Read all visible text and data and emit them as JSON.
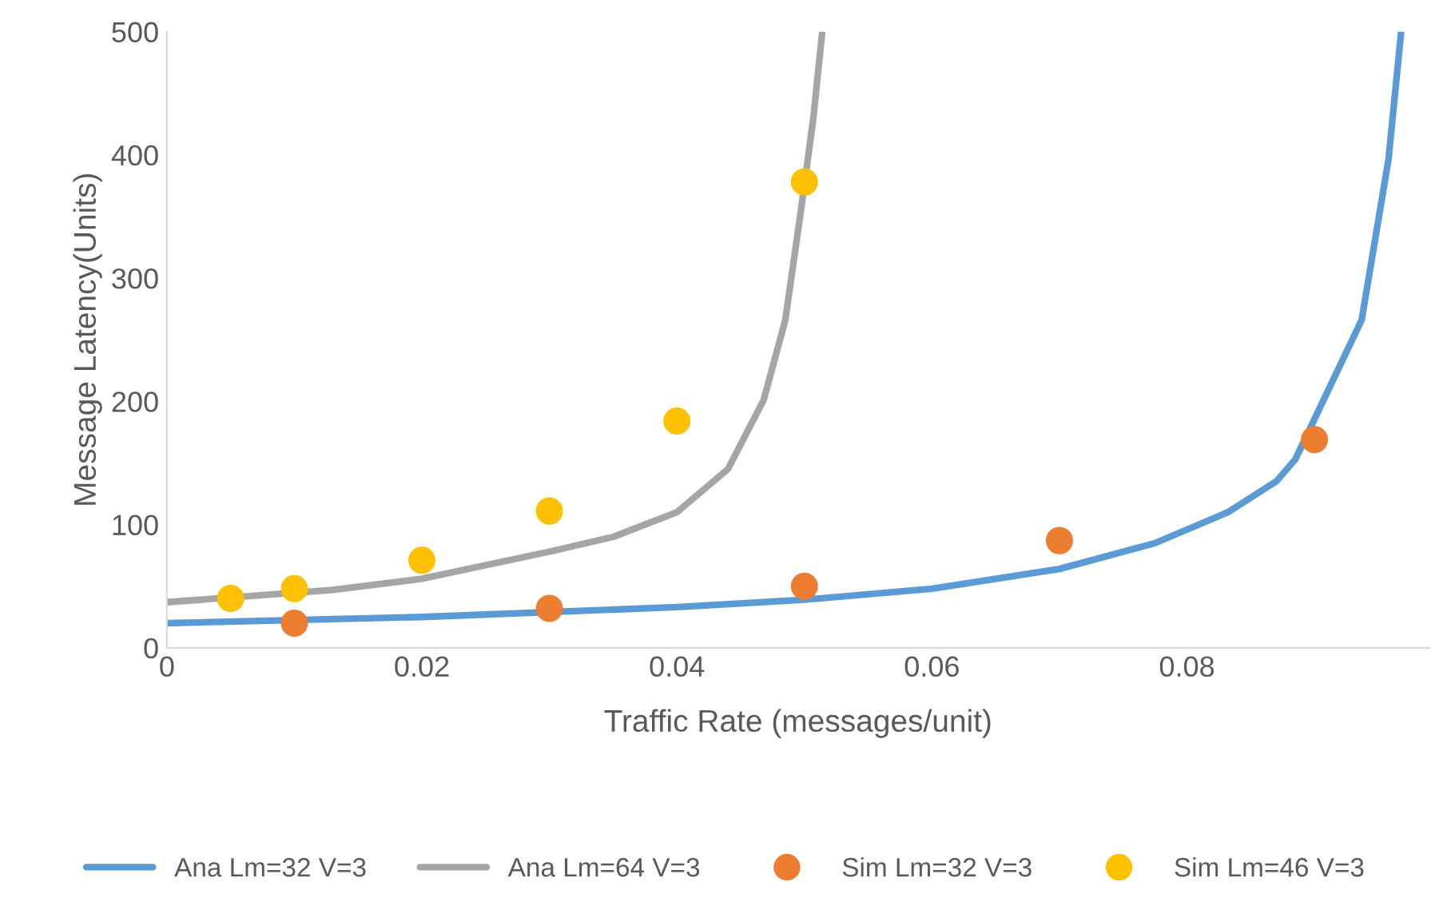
{
  "chart_data": {
    "type": "line",
    "xlabel": "Traffic Rate (messages/unit)",
    "ylabel": "Message Latency(Units)",
    "xlim": [
      0,
      0.099
    ],
    "xticks": [
      0,
      0.02,
      0.04,
      0.06,
      0.08
    ],
    "ylim": [
      0,
      500
    ],
    "yticks": [
      0,
      100,
      200,
      300,
      400,
      500
    ],
    "grid": false,
    "legend": "bottom",
    "marker": "none",
    "line_style": "solid",
    "series": [
      {
        "name": "Ana Lm=32 V=3",
        "color": "#5b9bd5",
        "x": [
          0,
          0.02,
          0.04,
          0.05,
          0.06,
          0.07,
          0.0775,
          0.0832,
          0.087,
          0.0885,
          0.0937,
          0.0958,
          0.0968
        ],
        "values": [
          20,
          25,
          33,
          39,
          48,
          64,
          85,
          110,
          135,
          153,
          266,
          396,
          500
        ]
      },
      {
        "name": "Ana Lm=64 V=3",
        "color": "#a5a5a5",
        "x": [
          0,
          0.013,
          0.02,
          0.03,
          0.035,
          0.04,
          0.044,
          0.0468,
          0.0485,
          0.0497,
          0.0507,
          0.0514
        ],
        "values": [
          37,
          47,
          56,
          78,
          90,
          110,
          145,
          201,
          266,
          353,
          430,
          500
        ]
      },
      {
        "name": "Sim Lm=32 V=3",
        "type": "scatter",
        "marker": "circle",
        "color": "#ed7d31",
        "x": [
          0.01,
          0.03,
          0.05,
          0.07,
          0.09
        ],
        "values": [
          20,
          32,
          50,
          87,
          169
        ]
      },
      {
        "name": "Sim Lm=46 V=3",
        "type": "scatter",
        "marker": "circle",
        "color": "#ffc000",
        "x": [
          0.005,
          0.01,
          0.02,
          0.03,
          0.04,
          0.05
        ],
        "values": [
          40,
          48,
          71,
          111,
          184,
          378
        ]
      }
    ]
  }
}
